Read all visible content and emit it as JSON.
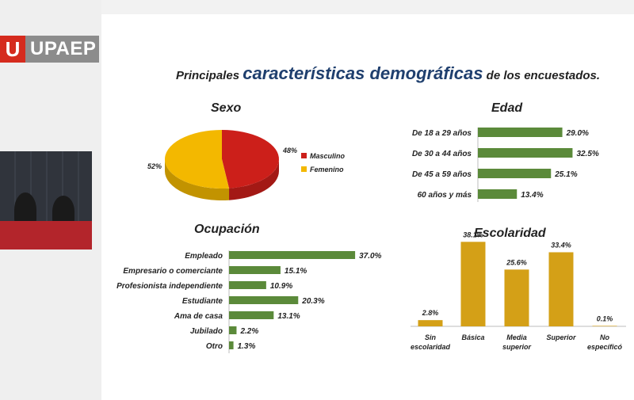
{
  "logo": {
    "mark": "U",
    "text": "UPAEP"
  },
  "title": {
    "before": "Principales ",
    "highlight": "características demográficas",
    "after": " de los encuestados."
  },
  "colors": {
    "green": "#5b8a3a",
    "gold": "#d4a017",
    "red": "#cc1f1a",
    "yellow": "#f3b800"
  },
  "chart_data": [
    {
      "type": "pie",
      "title": "Sexo",
      "labels": [
        "Masculino",
        "Femenino"
      ],
      "values": [
        48,
        52
      ],
      "value_labels": [
        "48%",
        "52%"
      ],
      "colors": [
        "#cc1f1a",
        "#f3b800"
      ],
      "legend_position": "right"
    },
    {
      "type": "bar",
      "orientation": "horizontal",
      "title": "Edad",
      "categories": [
        "De 18 a 29 años",
        "De 30 a 44 años",
        "De 45 a 59 años",
        "60 años y más"
      ],
      "values": [
        29.0,
        32.5,
        25.1,
        13.4
      ],
      "value_labels": [
        "29.0%",
        "32.5%",
        "25.1%",
        "13.4%"
      ],
      "xlim": [
        0,
        40
      ]
    },
    {
      "type": "bar",
      "orientation": "horizontal",
      "title": "Ocupación",
      "categories": [
        "Empleado",
        "Empresario o comerciante",
        "Profesionista independiente",
        "Estudiante",
        "Ama de casa",
        "Jubilado",
        "Otro"
      ],
      "values": [
        37.0,
        15.1,
        10.9,
        20.3,
        13.1,
        2.2,
        1.3
      ],
      "value_labels": [
        "37.0%",
        "15.1%",
        "10.9%",
        "20.3%",
        "13.1%",
        "2.2%",
        "1.3%"
      ],
      "xlim": [
        0,
        40
      ]
    },
    {
      "type": "bar",
      "orientation": "vertical",
      "title": "Escolaridad",
      "categories": [
        [
          "Sin",
          "escolaridad"
        ],
        [
          "Básica"
        ],
        [
          "Media",
          "superior"
        ],
        [
          "Superior"
        ],
        [
          "No",
          "específicó"
        ]
      ],
      "values": [
        2.8,
        38.1,
        25.6,
        33.4,
        0.1
      ],
      "value_labels": [
        "2.8%",
        "38.1%",
        "25.6%",
        "33.4%",
        "0.1%"
      ],
      "ylim": [
        0,
        40
      ]
    }
  ]
}
